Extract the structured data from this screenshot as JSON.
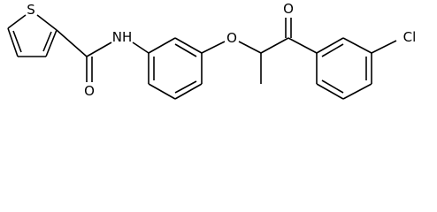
{
  "atoms": {
    "thiophene_s": "S",
    "amide_o": "O",
    "amide_n": "NH",
    "ether_o": "O",
    "ketone_o": "O",
    "chlorine": "Cl"
  }
}
